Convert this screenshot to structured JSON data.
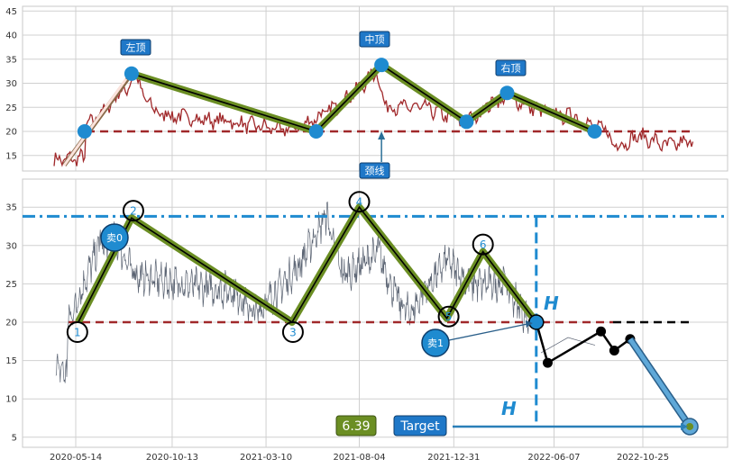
{
  "colors": {
    "price": "#a0282a",
    "price2": "#5a6372",
    "green": "#6b8e23",
    "blue": "#1f8bd0",
    "neck": "#a0282a",
    "dashdot": "#1f8bd0",
    "box": "#1f78c8",
    "pred": "#5fa8d8"
  },
  "chart_data": [
    {
      "type": "line",
      "panel": "top",
      "ylim": [
        12,
        47
      ],
      "yticks": [
        15,
        20,
        25,
        30,
        35,
        40,
        45
      ],
      "neckline": 20,
      "pattern": [
        {
          "x": "2020-04-26",
          "y": 13
        },
        {
          "x": "2020-05-28",
          "y": 20
        },
        {
          "x": "2020-08-10",
          "y": 32
        },
        {
          "x": "2021-05-28",
          "y": 20
        },
        {
          "x": "2021-09-08",
          "y": 33.8
        },
        {
          "x": "2022-01-20",
          "y": 22
        },
        {
          "x": "2022-03-25",
          "y": 28
        },
        {
          "x": "2022-08-10",
          "y": 20
        }
      ],
      "annotations": [
        {
          "text": "左顶",
          "x": "2020-08-10",
          "y": 37
        },
        {
          "text": "中顶",
          "x": "2021-09-08",
          "y": 39.5
        },
        {
          "text": "右顶",
          "x": "2022-03-25",
          "y": 33
        },
        {
          "text": "颈线",
          "x": "2021-09-08",
          "y": 14
        }
      ]
    },
    {
      "type": "line",
      "panel": "bottom",
      "ylim": [
        3.5,
        39
      ],
      "yticks": [
        5,
        10,
        15,
        20,
        25,
        30,
        35
      ],
      "xtick_labels": [
        "2020-05-14",
        "2020-10-13",
        "2021-03-10",
        "2021-08-04",
        "2021-12-31",
        "2022-06-07",
        "2022-10-25"
      ],
      "neckline": 20,
      "top_line": 33.8,
      "pattern_points": [
        {
          "label": "1",
          "x": "2020-05-18",
          "y": 20
        },
        {
          "label": "2",
          "x": "2020-08-10",
          "y": 33.6
        },
        {
          "label": "3",
          "x": "2021-04-20",
          "y": 20
        },
        {
          "label": "4",
          "x": "2021-08-04",
          "y": 35
        },
        {
          "label": "5",
          "x": "2021-12-20",
          "y": 20.5
        },
        {
          "label": "6",
          "x": "2022-02-15",
          "y": 29.2
        }
      ],
      "sell_points": [
        {
          "label": "卖0",
          "x": "2020-08-07",
          "y": 31
        },
        {
          "label": "卖1",
          "x": "2022-05-10",
          "y": 20
        }
      ],
      "post_break": [
        {
          "x": "2022-05-10",
          "y": 20
        },
        {
          "x": "2022-05-28",
          "y": 14.7
        },
        {
          "x": "2022-08-20",
          "y": 18.8
        },
        {
          "x": "2022-09-10",
          "y": 16.3
        },
        {
          "x": "2022-10-05",
          "y": 17.8
        }
      ],
      "target": {
        "x": "2023-01-07",
        "y": 6.39,
        "value_label": "6.39",
        "label": "Target"
      },
      "height_label": "H"
    }
  ]
}
